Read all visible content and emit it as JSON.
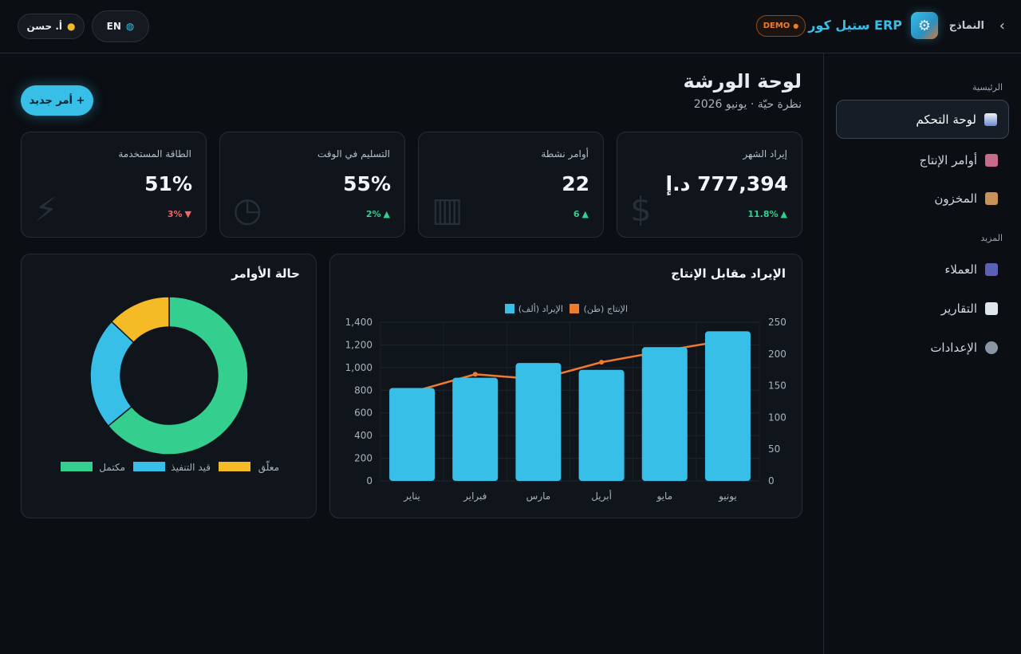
{
  "header": {
    "back": "النماذج",
    "brand": "ستيل كور ERP",
    "badge": "DEMO",
    "language": "EN",
    "user": "أ. حسن"
  },
  "sidebar": {
    "sections": [
      {
        "title": "الرئيسية",
        "items": [
          "لوحة التحكم",
          "أوامر الإنتاج",
          "المخزون"
        ]
      },
      {
        "title": "المزيد",
        "items": [
          "العملاء",
          "التقارير",
          "الإعدادات"
        ]
      }
    ]
  },
  "page": {
    "title": "لوحة الورشة",
    "subtitle": "نظرة حيّة · يونيو 2026",
    "action": "+ أمر جديد"
  },
  "kpis": [
    {
      "label": "إيراد الشهر",
      "value": "777,394 د.إ",
      "delta": "11.8%"
    },
    {
      "label": "أوامر نشطة",
      "value": "22",
      "delta": "6"
    },
    {
      "label": "التسليم في الوقت",
      "value": "55%",
      "delta": "2%"
    },
    {
      "label": "الطاقة المستخدمة",
      "value": "51%",
      "delta": "3%"
    }
  ],
  "chart_data": [
    {
      "type": "bar",
      "title": "الإيراد مقابل الإنتاج",
      "categories": [
        "يناير",
        "فبراير",
        "مارس",
        "أبريل",
        "مايو",
        "يونيو"
      ],
      "series": [
        {
          "name": "الإيراد (ألف)",
          "color": "#38bfe8",
          "values": [
            820,
            910,
            1040,
            980,
            1180,
            1320
          ]
        },
        {
          "name": "الإنتاج (طن)",
          "color": "#f07b2a",
          "type": "line",
          "axis": "y2",
          "values": [
            140,
            168,
            160,
            187,
            205,
            222
          ]
        }
      ],
      "ylim": [
        0,
        1400
      ],
      "yticks": [
        0,
        200,
        400,
        600,
        800,
        {
          "value": 1000,
          "label": "1,000"
        },
        {
          "value": 1200,
          "label": "1,200"
        },
        {
          "value": 1400,
          "label": "1,400"
        }
      ],
      "y2lim": [
        0,
        250
      ],
      "y2ticks": [
        0,
        50,
        100,
        150,
        200,
        250
      ],
      "grid": true
    },
    {
      "type": "doughnut",
      "title": "حالة الأوامر",
      "categories": [
        "مكتمل",
        "قيد التنفيذ",
        "معلّق"
      ],
      "values": [
        64,
        23,
        13
      ],
      "colors": [
        "#34cf8f",
        "#38bfe8",
        "#f5bb26"
      ]
    }
  ]
}
